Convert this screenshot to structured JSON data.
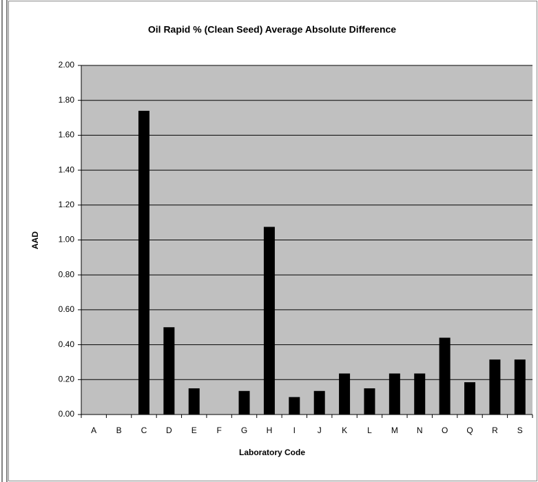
{
  "chart_data": {
    "type": "bar",
    "title": "Oil Rapid % (Clean Seed) Average Absolute Difference",
    "x_label": "Laboratory Code",
    "y_label": "AAD",
    "categories": [
      "A",
      "B",
      "C",
      "D",
      "E",
      "F",
      "G",
      "H",
      "I",
      "J",
      "K",
      "L",
      "M",
      "N",
      "O",
      "Q",
      "R",
      "S"
    ],
    "values": [
      null,
      null,
      1.74,
      0.5,
      0.15,
      null,
      0.135,
      1.075,
      0.1,
      0.135,
      0.235,
      0.15,
      0.235,
      0.235,
      0.44,
      0.185,
      0.315,
      0.315
    ],
    "color": "#000000",
    "background": "#c0c0c0",
    "ylim": [
      0,
      2
    ],
    "yticks": [
      {
        "value": 0,
        "label": "0.00"
      },
      {
        "value": 0.2,
        "label": "0.20"
      },
      {
        "value": 0.4,
        "label": "0.40"
      },
      {
        "value": 0.6,
        "label": "0.60"
      },
      {
        "value": 0.8,
        "label": "0.80"
      },
      {
        "value": 1,
        "label": "1.00"
      },
      {
        "value": 1.2,
        "label": "1.20"
      },
      {
        "value": 1.4,
        "label": "1.40"
      },
      {
        "value": 1.6,
        "label": "1.60"
      },
      {
        "value": 1.8,
        "label": "1.80"
      },
      {
        "value": 2,
        "label": "2.00"
      }
    ],
    "grid": true
  }
}
